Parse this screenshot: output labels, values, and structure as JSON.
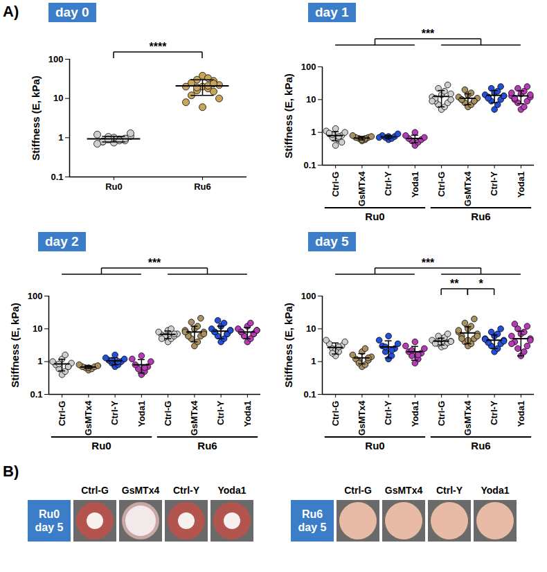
{
  "panel_a_label": "A)",
  "chart_data": [
    {
      "type": "scatter",
      "title": "day 0",
      "y_label": "Stiffness (E, kPa)",
      "categories": [
        "Ru0",
        "Ru6"
      ],
      "colors": [
        "#cfcfcf",
        "#c9a55a"
      ],
      "points": [
        [
          0.95,
          0.9,
          1.0,
          0.85,
          0.8,
          1.1,
          1.2,
          0.75,
          0.9,
          1.05,
          0.95,
          0.8,
          1.3,
          0.7,
          1.0,
          0.85,
          0.9
        ],
        [
          38,
          33,
          30,
          28,
          25,
          22,
          20,
          20,
          18,
          16,
          15,
          12,
          10,
          8,
          6,
          21,
          19,
          24
        ]
      ],
      "mean": [
        0.93,
        21
      ],
      "sd": [
        0.15,
        9
      ],
      "annotations": [
        {
          "label": "****",
          "from": [
            0,
            0
          ],
          "to": [
            1,
            1
          ]
        }
      ],
      "log": "y",
      "ylim": [
        0.1,
        100
      ],
      "yticks": [
        0.1,
        1,
        10,
        100
      ]
    },
    {
      "type": "scatter",
      "title": "day 1",
      "y_label": "Stiffness (E, kPa)",
      "categories": [
        "Ctrl-G",
        "GsMTx4",
        "Ctrl-Y",
        "Yoda1",
        "Ctrl-G",
        "GsMTx4",
        "Ctrl-Y",
        "Yoda1"
      ],
      "groups": [
        "Ru0",
        "Ru0",
        "Ru0",
        "Ru0",
        "Ru6",
        "Ru6",
        "Ru6",
        "Ru6"
      ],
      "colors": [
        "#cfcfcf",
        "#a89060",
        "#2450d8",
        "#b43cb4",
        "#cfcfcf",
        "#a89060",
        "#2450d8",
        "#b43cb4"
      ],
      "points": [
        [
          0.4,
          0.6,
          0.7,
          0.8,
          0.9,
          1.0,
          1.1,
          1.3,
          0.75,
          0.85,
          0.5,
          0.95
        ],
        [
          0.55,
          0.6,
          0.65,
          0.7,
          0.7,
          0.75,
          0.8,
          0.6,
          0.65
        ],
        [
          0.6,
          0.65,
          0.7,
          0.75,
          0.8,
          0.9,
          0.7,
          0.75
        ],
        [
          0.4,
          0.5,
          0.55,
          0.6,
          0.65,
          0.7,
          0.8,
          1.0
        ],
        [
          5,
          6,
          7,
          8,
          9,
          10,
          12,
          14,
          18,
          22,
          28,
          11,
          15,
          9
        ],
        [
          6,
          7,
          8,
          9,
          10,
          11,
          12,
          14,
          16,
          20,
          9,
          10
        ],
        [
          5,
          7,
          9,
          10,
          12,
          13,
          14,
          16,
          18,
          22,
          25,
          11,
          13
        ],
        [
          5,
          6,
          8,
          9,
          10,
          12,
          13,
          15,
          18,
          22,
          25,
          11,
          14,
          16
        ]
      ],
      "mean": [
        0.8,
        0.67,
        0.73,
        0.65,
        12.5,
        11,
        13.5,
        13
      ],
      "sd": [
        0.25,
        0.08,
        0.08,
        0.17,
        6.5,
        4,
        5.5,
        5.5
      ],
      "annotations": [
        {
          "label": "***",
          "from": [
            0,
            3
          ],
          "to": [
            4,
            7
          ]
        }
      ],
      "log": "y",
      "ylim": [
        0.1,
        100
      ],
      "yticks": [
        0.1,
        1,
        10,
        100
      ]
    },
    {
      "type": "scatter",
      "title": "day 2",
      "y_label": "Stiffness (E, kPa)",
      "categories": [
        "Ctrl-G",
        "GsMTx4",
        "Ctrl-Y",
        "Yoda1",
        "Ctrl-G",
        "GsMTx4",
        "Ctrl-Y",
        "Yoda1"
      ],
      "groups": [
        "Ru0",
        "Ru0",
        "Ru0",
        "Ru0",
        "Ru6",
        "Ru6",
        "Ru6",
        "Ru6"
      ],
      "colors": [
        "#cfcfcf",
        "#a89060",
        "#2450d8",
        "#b43cb4",
        "#cfcfcf",
        "#a89060",
        "#2450d8",
        "#b43cb4"
      ],
      "points": [
        [
          0.4,
          0.5,
          0.6,
          0.7,
          0.8,
          0.9,
          1.0,
          1.2,
          1.6,
          0.85,
          0.7
        ],
        [
          0.55,
          0.6,
          0.65,
          0.7,
          0.7,
          0.75,
          0.8,
          0.65
        ],
        [
          0.7,
          0.8,
          0.9,
          1.0,
          1.1,
          1.2,
          1.3,
          1.6,
          1.0,
          1.1
        ],
        [
          0.4,
          0.5,
          0.6,
          0.7,
          0.8,
          1.0,
          1.2,
          1.5,
          0.65
        ],
        [
          4,
          5,
          5.5,
          6,
          6.5,
          7,
          8,
          9,
          10,
          6,
          7,
          5
        ],
        [
          3,
          4,
          5,
          6,
          7,
          8,
          9,
          10,
          12,
          16,
          21,
          6,
          7,
          8
        ],
        [
          4,
          5,
          6,
          7,
          8,
          9,
          10,
          12,
          15,
          18,
          7,
          8,
          9
        ],
        [
          4,
          5,
          6,
          7,
          8,
          9,
          10,
          12,
          15,
          6,
          7,
          8,
          9
        ]
      ],
      "mean": [
        0.85,
        0.68,
        1.05,
        0.8,
        6.8,
        8,
        8.5,
        8
      ],
      "sd": [
        0.33,
        0.07,
        0.25,
        0.35,
        1.8,
        4,
        3.5,
        3
      ],
      "annotations": [
        {
          "label": "***",
          "from": [
            0,
            3
          ],
          "to": [
            4,
            7
          ]
        }
      ],
      "log": "y",
      "ylim": [
        0.1,
        100
      ],
      "yticks": [
        0.1,
        1,
        10,
        100
      ]
    },
    {
      "type": "scatter",
      "title": "day 5",
      "y_label": "Stiffness (E, kPa)",
      "categories": [
        "Ctrl-G",
        "GsMTx4",
        "Ctrl-Y",
        "Yoda1",
        "Ctrl-G",
        "GsMTx4",
        "Ctrl-Y",
        "Yoda1"
      ],
      "groups": [
        "Ru0",
        "Ru0",
        "Ru0",
        "Ru0",
        "Ru6",
        "Ru6",
        "Ru6",
        "Ru6"
      ],
      "colors": [
        "#cfcfcf",
        "#a89060",
        "#2450d8",
        "#b43cb4",
        "#cfcfcf",
        "#a89060",
        "#2450d8",
        "#b43cb4"
      ],
      "points": [
        [
          1.5,
          2,
          2.5,
          3,
          3.5,
          4,
          4.5,
          2.2,
          2.8,
          1.8
        ],
        [
          0.7,
          0.8,
          1.0,
          1.1,
          1.2,
          1.4,
          1.6,
          2.0,
          2.5,
          0.9,
          1.3
        ],
        [
          1.2,
          1.5,
          2,
          2.5,
          3,
          3.5,
          4.5,
          6,
          2.2,
          2.8
        ],
        [
          0.9,
          1.2,
          1.5,
          1.8,
          2,
          2.5,
          3,
          4,
          1.6,
          2.2
        ],
        [
          2.8,
          3,
          3.5,
          3.8,
          4,
          4.2,
          4.5,
          5,
          5.5,
          6,
          7,
          3.6,
          4.1
        ],
        [
          3,
          3.5,
          4,
          5,
          6,
          7,
          8,
          10,
          12,
          15,
          20,
          5,
          6,
          9,
          4.5
        ],
        [
          2,
          2.5,
          3,
          3.5,
          4,
          4.5,
          5,
          6,
          7,
          8,
          10,
          3.8,
          4.2,
          4.8
        ],
        [
          1.5,
          2,
          2.5,
          3,
          4,
          5,
          6,
          7,
          8,
          10,
          12,
          14,
          4.5,
          3.5
        ]
      ],
      "mean": [
        2.7,
        1.3,
        2.8,
        2,
        4.2,
        7.5,
        4.5,
        5
      ],
      "sd": [
        1,
        0.45,
        1.5,
        0.9,
        1,
        4,
        2,
        3.5
      ],
      "annotations": [
        {
          "label": "**",
          "from": [
            4,
            4
          ],
          "to": [
            5,
            5
          ]
        },
        {
          "label": "*",
          "from": [
            5,
            5
          ],
          "to": [
            6,
            6
          ]
        },
        {
          "label": "***",
          "from": [
            0,
            3
          ],
          "to": [
            4,
            7
          ]
        }
      ],
      "log": "y",
      "ylim": [
        0.1,
        100
      ],
      "yticks": [
        0.1,
        1,
        10,
        100
      ]
    }
  ],
  "panel_b": {
    "label": "B)",
    "strips": [
      {
        "label": "Ru0 day 5",
        "columns": [
          "Ctrl-G",
          "GsMTx4",
          "Ctrl-Y",
          "Yoda1"
        ]
      },
      {
        "label": "Ru6 day 5",
        "columns": [
          "Ctrl-G",
          "GsMTx4",
          "Ctrl-Y",
          "Yoda1"
        ]
      }
    ]
  }
}
